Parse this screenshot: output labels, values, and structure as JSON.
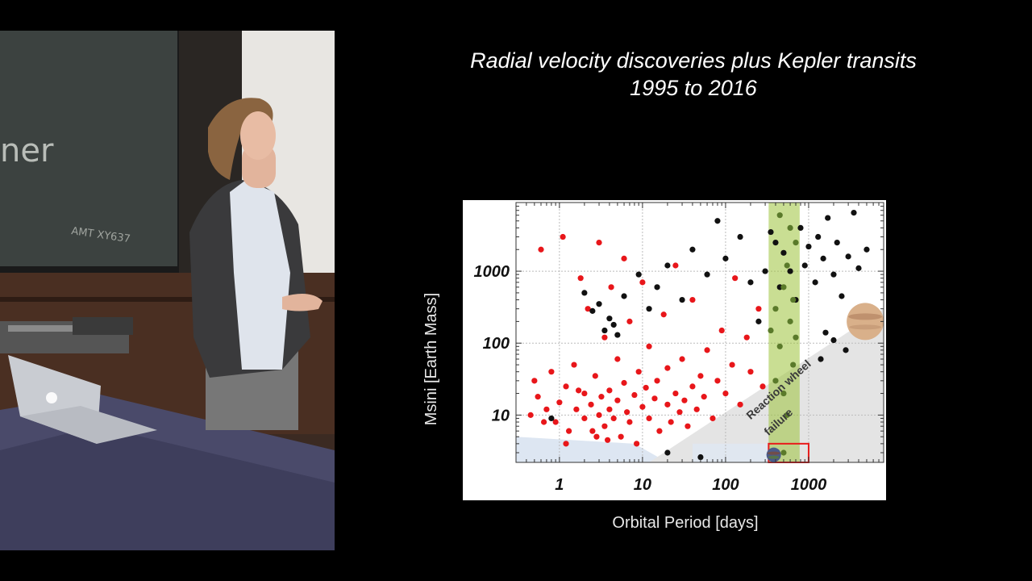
{
  "slide": {
    "title_line1": "Radial velocity discoveries plus Kepler transits",
    "title_line2": "1995 to 2016"
  },
  "video": {
    "chalkboard_text": "ner",
    "chalkboard_small_text": "AMT XY637",
    "scene": "lecturer-at-podium"
  },
  "chart_data": {
    "type": "scatter",
    "xlabel": "Orbital Period [days]",
    "ylabel": "Msini [Earth Mass]",
    "xscale": "log",
    "yscale": "log",
    "xlim": [
      0.3,
      8000
    ],
    "ylim": [
      2.2,
      9000
    ],
    "xticks": [
      1,
      10,
      100,
      1000
    ],
    "xtick_labels": [
      "1",
      "10",
      "100",
      "1000"
    ],
    "yticks": [
      10,
      100,
      1000
    ],
    "ytick_labels": [
      "10",
      "100",
      "1000"
    ],
    "grid": true,
    "series": [
      {
        "color": "#e8161a",
        "values": [
          [
            0.5,
            30
          ],
          [
            0.6,
            2000
          ],
          [
            0.7,
            12
          ],
          [
            0.8,
            40
          ],
          [
            0.9,
            8
          ],
          [
            1,
            15
          ],
          [
            1.1,
            3000
          ],
          [
            1.2,
            25
          ],
          [
            1.3,
            6
          ],
          [
            1.5,
            50
          ],
          [
            1.6,
            12
          ],
          [
            1.8,
            800
          ],
          [
            2,
            9
          ],
          [
            2,
            20
          ],
          [
            2.2,
            300
          ],
          [
            2.4,
            14
          ],
          [
            2.5,
            6
          ],
          [
            2.7,
            35
          ],
          [
            3,
            10
          ],
          [
            3,
            2500
          ],
          [
            3.2,
            18
          ],
          [
            3.5,
            7
          ],
          [
            3.5,
            120
          ],
          [
            4,
            22
          ],
          [
            4,
            12
          ],
          [
            4.2,
            600
          ],
          [
            4.5,
            9
          ],
          [
            5,
            16
          ],
          [
            5,
            60
          ],
          [
            5.5,
            5
          ],
          [
            6,
            28
          ],
          [
            6,
            1500
          ],
          [
            6.5,
            11
          ],
          [
            7,
            8
          ],
          [
            7,
            200
          ],
          [
            8,
            19
          ],
          [
            8.5,
            4
          ],
          [
            9,
            40
          ],
          [
            10,
            13
          ],
          [
            10,
            700
          ],
          [
            11,
            24
          ],
          [
            12,
            9
          ],
          [
            12,
            90
          ],
          [
            14,
            17
          ],
          [
            15,
            30
          ],
          [
            16,
            6
          ],
          [
            18,
            250
          ],
          [
            20,
            14
          ],
          [
            20,
            45
          ],
          [
            22,
            8
          ],
          [
            25,
            20
          ],
          [
            25,
            1200
          ],
          [
            28,
            11
          ],
          [
            30,
            60
          ],
          [
            32,
            16
          ],
          [
            35,
            7
          ],
          [
            40,
            25
          ],
          [
            40,
            400
          ],
          [
            45,
            12
          ],
          [
            50,
            35
          ],
          [
            55,
            18
          ],
          [
            60,
            80
          ],
          [
            70,
            9
          ],
          [
            80,
            30
          ],
          [
            90,
            150
          ],
          [
            100,
            20
          ],
          [
            120,
            50
          ],
          [
            130,
            800
          ],
          [
            150,
            14
          ],
          [
            180,
            120
          ],
          [
            200,
            40
          ],
          [
            250,
            300
          ],
          [
            280,
            25
          ],
          [
            1.2,
            4
          ],
          [
            2.8,
            5
          ],
          [
            0.45,
            10
          ],
          [
            0.55,
            18
          ],
          [
            0.65,
            8
          ],
          [
            1.7,
            22
          ],
          [
            3.8,
            4.5
          ]
        ]
      },
      {
        "color": "#111111",
        "values": [
          [
            2,
            500
          ],
          [
            2.5,
            280
          ],
          [
            3,
            350
          ],
          [
            3.5,
            150
          ],
          [
            4,
            220
          ],
          [
            4.5,
            180
          ],
          [
            5,
            130
          ],
          [
            6,
            450
          ],
          [
            9,
            900
          ],
          [
            12,
            300
          ],
          [
            15,
            600
          ],
          [
            20,
            1200
          ],
          [
            30,
            400
          ],
          [
            40,
            2000
          ],
          [
            60,
            900
          ],
          [
            80,
            5000
          ],
          [
            100,
            1500
          ],
          [
            150,
            3000
          ],
          [
            200,
            700
          ],
          [
            250,
            200
          ],
          [
            300,
            1000
          ],
          [
            350,
            3500
          ],
          [
            400,
            2500
          ],
          [
            450,
            600
          ],
          [
            500,
            1800
          ],
          [
            600,
            1000
          ],
          [
            700,
            400
          ],
          [
            800,
            4000
          ],
          [
            900,
            1200
          ],
          [
            1000,
            2200
          ],
          [
            1200,
            700
          ],
          [
            1300,
            3000
          ],
          [
            1500,
            1500
          ],
          [
            1700,
            5500
          ],
          [
            2000,
            900
          ],
          [
            2200,
            2500
          ],
          [
            2500,
            450
          ],
          [
            3000,
            1600
          ],
          [
            3500,
            6500
          ],
          [
            4000,
            1100
          ],
          [
            4500,
            300
          ],
          [
            5000,
            2000
          ],
          [
            2800,
            80
          ],
          [
            2000,
            110
          ],
          [
            1600,
            140
          ],
          [
            1400,
            60
          ],
          [
            0.8,
            9
          ],
          [
            20,
            3
          ],
          [
            50,
            2.6
          ]
        ]
      },
      {
        "color": "#5a7a2a",
        "values": [
          [
            350,
            150
          ],
          [
            400,
            300
          ],
          [
            450,
            90
          ],
          [
            500,
            600
          ],
          [
            550,
            1200
          ],
          [
            600,
            200
          ],
          [
            650,
            50
          ],
          [
            700,
            2500
          ],
          [
            400,
            30
          ],
          [
            500,
            20
          ],
          [
            550,
            10
          ],
          [
            600,
            4000
          ],
          [
            450,
            6000
          ],
          [
            650,
            400
          ],
          [
            700,
            120
          ],
          [
            500,
            3
          ]
        ]
      }
    ],
    "annotations": [
      {
        "text": "Reaction wheel",
        "type": "label"
      },
      {
        "text": "failure",
        "type": "label"
      }
    ],
    "highlight_band_x": [
      330,
      780
    ],
    "highlight_band_color": "#9dc33a",
    "kepler_box": {
      "x": [
        330,
        1000
      ],
      "y": [
        2.2,
        4
      ],
      "color": "#e81b1b"
    },
    "planet_icons": [
      {
        "name": "jupiter-icon",
        "x": 4800,
        "y": 200
      },
      {
        "name": "earth-icon",
        "x": 380,
        "y": 2.8
      }
    ]
  }
}
